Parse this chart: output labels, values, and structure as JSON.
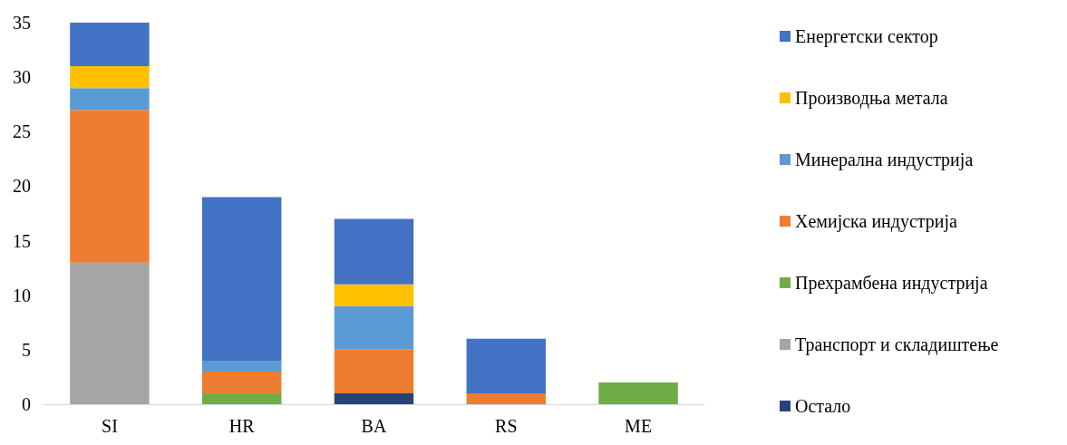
{
  "chart_data": {
    "type": "bar",
    "stacked": true,
    "categories": [
      "SI",
      "HR",
      "BA",
      "RS",
      "ME"
    ],
    "series": [
      {
        "name": "Остало",
        "color": "#264478",
        "values": [
          0,
          0,
          1,
          0,
          0
        ]
      },
      {
        "name": "Транспорт и складиштење",
        "color": "#a5a5a5",
        "values": [
          13,
          0,
          0,
          0,
          0
        ]
      },
      {
        "name": "Прехрамбена индустрија",
        "color": "#70ad47",
        "values": [
          0,
          1,
          0,
          0,
          2
        ]
      },
      {
        "name": "Хемијска индустрија",
        "color": "#ed7d31",
        "values": [
          14,
          2,
          4,
          1,
          0
        ]
      },
      {
        "name": "Минерална индустрија",
        "color": "#5b9bd5",
        "values": [
          2,
          1,
          4,
          0,
          0
        ]
      },
      {
        "name": "Производња метала",
        "color": "#ffc000",
        "values": [
          2,
          0,
          2,
          0,
          0
        ]
      },
      {
        "name": "Енергетски сектор",
        "color": "#4472c4",
        "values": [
          4,
          15,
          6,
          5,
          0
        ]
      }
    ],
    "ylim": [
      0,
      35
    ],
    "yticks": [
      0,
      5,
      10,
      15,
      20,
      25,
      30,
      35
    ],
    "grid": false,
    "legend": "right"
  }
}
